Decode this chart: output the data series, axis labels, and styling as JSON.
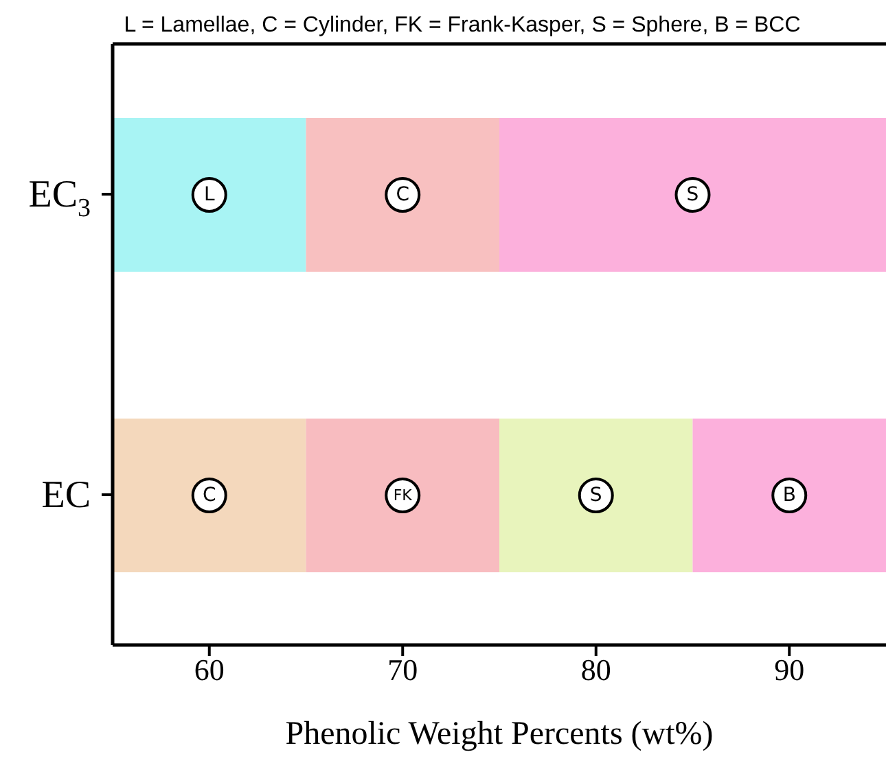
{
  "chart_data": {
    "type": "bar",
    "orientation": "horizontal",
    "title": "L = Lamellae, C = Cylinder, FK = Frank-Kasper, S = Sphere, B = BCC",
    "xlabel": "Phenolic Weight Percents (wt%)",
    "categories": [
      "EC$_{3}$",
      "EC"
    ],
    "series": [
      {
        "colors": [
          "#a8f4f4",
          "#f4d8bc"
        ],
        "base": [
          55,
          55
        ],
        "values": [
          10,
          10
        ],
        "value_labels": [
          "L",
          "C"
        ]
      },
      {
        "colors": [
          "#f8c0c0",
          "#f8bcc0"
        ],
        "base": [
          65,
          65
        ],
        "values": [
          10,
          10
        ],
        "value_labels": [
          "C",
          "FK"
        ]
      },
      {
        "colors": [
          "#fcb0dc",
          "#e8f4bc"
        ],
        "base": [
          75,
          75
        ],
        "values": [
          20,
          10
        ],
        "value_labels": [
          "S",
          "S"
        ]
      },
      {
        "colors": [
          "#fcb0dc",
          "#fcb0dc"
        ],
        "base": [
          null,
          85
        ],
        "values": [
          null,
          10
        ],
        "value_labels": [
          null,
          "B"
        ]
      }
    ],
    "xlim": [
      55,
      95
    ],
    "xticks": [
      60,
      70,
      80,
      90
    ]
  }
}
